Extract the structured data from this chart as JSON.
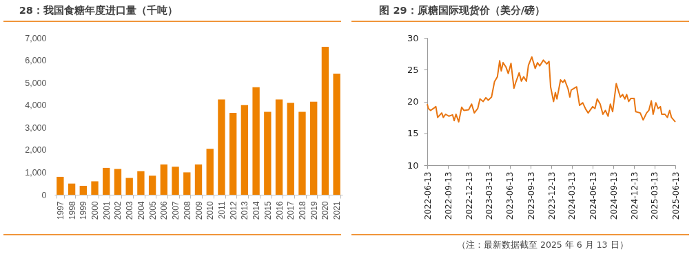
{
  "chart_data": [
    {
      "type": "bar",
      "title": "28：我国食糖年度进口量（千吨）",
      "categories": [
        "1997",
        "1998",
        "1999",
        "2000",
        "2001",
        "2002",
        "2003",
        "2004",
        "2005",
        "2006",
        "2007",
        "2008",
        "2009",
        "2010",
        "2011",
        "2012",
        "2013",
        "2014",
        "2015",
        "2016",
        "2017",
        "2018",
        "2019",
        "2020",
        "2021"
      ],
      "values": [
        800,
        500,
        400,
        600,
        1200,
        1150,
        750,
        1050,
        850,
        1350,
        1250,
        1000,
        1350,
        2050,
        4250,
        3650,
        4000,
        4800,
        3700,
        4250,
        4100,
        3700,
        4150,
        6600,
        5400
      ],
      "color": "#ee8200",
      "ylim": [
        0,
        7000
      ],
      "yticks": [
        0,
        {
          "value": 1000,
          "label": "1,000"
        },
        {
          "value": 2000,
          "label": "2,000"
        },
        {
          "value": 3000,
          "label": "3,000"
        },
        {
          "value": 4000,
          "label": "4,000"
        },
        {
          "value": 5000,
          "label": "5,000"
        },
        {
          "value": 6000,
          "label": "6,000"
        },
        {
          "value": 7000,
          "label": "7,000"
        }
      ],
      "grid": false
    },
    {
      "type": "line",
      "title": "图 29：原糖国际现货价（美分/磅）",
      "x": [
        "2022-06-13",
        "2022-06-18",
        "2022-06-28",
        "2022-07-10",
        "2022-07-21",
        "2022-07-29",
        "2022-08-16",
        "2022-08-23",
        "2022-09-02",
        "2022-09-17",
        "2022-10-03",
        "2022-10-10",
        "2022-10-18",
        "2022-10-30",
        "2022-11-12",
        "2022-11-22",
        "2022-12-13",
        "2022-12-26",
        "2023-01-07",
        "2023-01-22",
        "2023-02-01",
        "2023-02-15",
        "2023-02-27",
        "2023-03-09",
        "2023-03-24",
        "2023-04-06",
        "2023-04-19",
        "2023-04-29",
        "2023-05-06",
        "2023-05-14",
        "2023-05-27",
        "2023-06-06",
        "2023-06-18",
        "2023-07-01",
        "2023-07-09",
        "2023-07-24",
        "2023-08-03",
        "2023-08-13",
        "2023-08-25",
        "2023-09-03",
        "2023-09-18",
        "2023-10-03",
        "2023-10-13",
        "2023-10-23",
        "2023-11-08",
        "2023-11-23",
        "2023-12-03",
        "2023-12-10",
        "2023-12-23",
        "2023-12-31",
        "2024-01-07",
        "2024-01-23",
        "2024-02-02",
        "2024-02-10",
        "2024-02-25",
        "2024-03-04",
        "2024-03-10",
        "2024-04-03",
        "2024-04-16",
        "2024-04-30",
        "2024-05-13",
        "2024-05-24",
        "2024-06-13",
        "2024-06-23",
        "2024-07-03",
        "2024-07-16",
        "2024-07-28",
        "2024-08-08",
        "2024-08-20",
        "2024-08-30",
        "2024-09-09",
        "2024-09-25",
        "2024-10-13",
        "2024-10-23",
        "2024-11-02",
        "2024-11-10",
        "2024-11-19",
        "2024-11-29",
        "2024-12-13",
        "2024-12-20",
        "2025-01-09",
        "2025-01-22",
        "2025-02-06",
        "2025-02-16",
        "2025-02-27",
        "2025-03-07",
        "2025-03-19",
        "2025-03-29",
        "2025-04-08",
        "2025-04-14",
        "2025-04-28",
        "2025-05-09",
        "2025-05-19",
        "2025-05-27",
        "2025-06-13"
      ],
      "values": [
        19.6,
        18.9,
        18.6,
        18.9,
        19.2,
        17.5,
        18.2,
        17.5,
        18.0,
        17.7,
        17.9,
        17.0,
        18.0,
        16.8,
        19.1,
        18.6,
        18.7,
        19.6,
        18.2,
        18.9,
        20.4,
        20.0,
        20.6,
        20.2,
        20.7,
        23.1,
        23.9,
        26.4,
        24.8,
        26.1,
        25.4,
        24.4,
        26.0,
        22.1,
        23.0,
        24.5,
        23.2,
        23.9,
        23.2,
        25.7,
        27.0,
        25.2,
        26.1,
        25.6,
        26.5,
        25.9,
        26.3,
        22.3,
        20.0,
        21.4,
        20.4,
        23.4,
        23.0,
        23.4,
        22.0,
        20.7,
        21.8,
        22.3,
        19.4,
        19.8,
        18.8,
        18.2,
        19.2,
        18.9,
        20.4,
        19.6,
        18.0,
        18.6,
        17.7,
        19.6,
        18.4,
        22.8,
        20.7,
        21.1,
        20.4,
        21.1,
        20.0,
        20.5,
        20.5,
        18.4,
        18.2,
        17.1,
        18.2,
        18.6,
        20.1,
        18.0,
        19.8,
        18.9,
        19.2,
        18.0,
        18.0,
        17.5,
        18.6,
        17.5,
        16.8
      ],
      "color": "#e87511",
      "ylim": [
        10,
        30
      ],
      "yticks": [
        10,
        15,
        20,
        25,
        30
      ],
      "xlim": [
        "2022-06-13",
        "2025-06-13"
      ],
      "xticks": [
        "2022-06-13",
        "2022-09-13",
        "2022-12-13",
        "2023-03-13",
        "2023-06-13",
        "2023-09-13",
        "2023-12-13",
        "2024-03-13",
        "2024-06-13",
        "2024-09-13",
        "2024-12-13",
        "2025-03-13",
        "2025-06-13"
      ],
      "grid": false,
      "annotations": [
        "（注：最新数据截至 2025 年 6 月 13 日）"
      ]
    }
  ]
}
